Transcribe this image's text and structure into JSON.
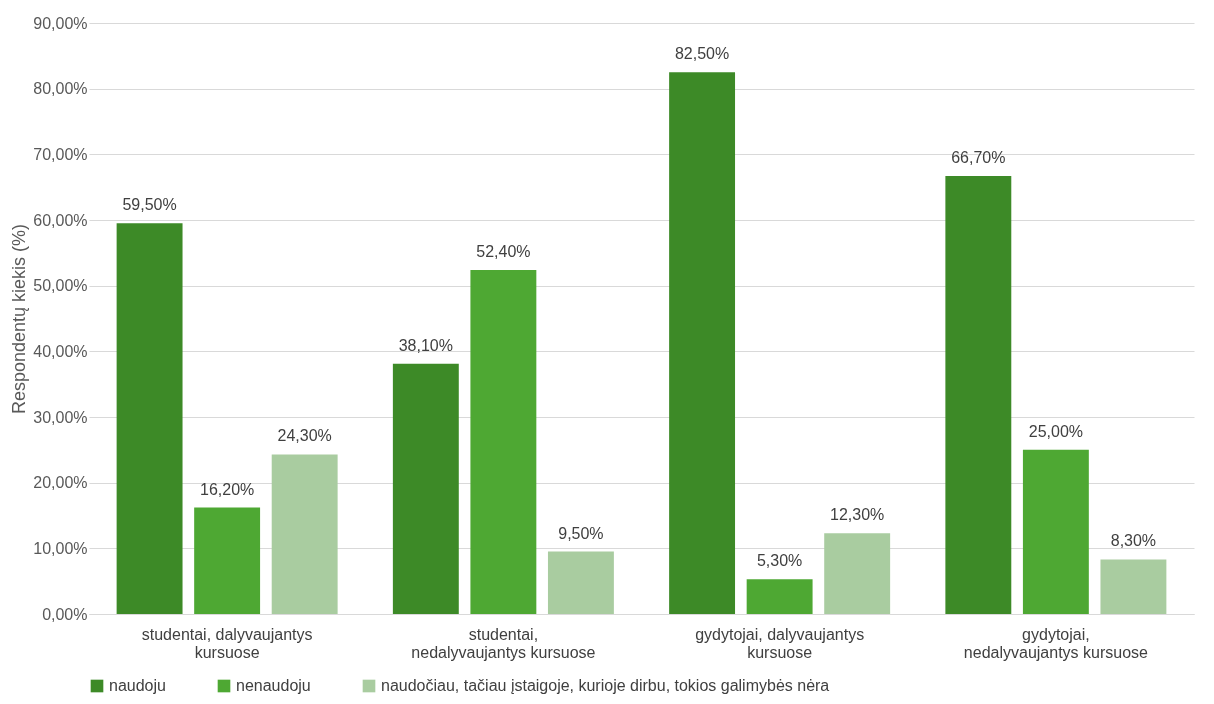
{
  "chart_data": {
    "type": "bar",
    "ylabel": "Respondentų kiekis (%)",
    "categories": [
      "studentai, dalyvaujantys kursuose",
      "studentai, nedalyvaujantys kursuose",
      "gydytojai, dalyvaujantys kursuose",
      "gydytojai, nedalyvaujantys kursuose"
    ],
    "series": [
      {
        "name": "naudoju",
        "color": "#3d8a27",
        "values": [
          59.5,
          38.1,
          82.5,
          66.7
        ],
        "value_labels": [
          "59,50%",
          "38,10%",
          "82,50%",
          "66,70%"
        ]
      },
      {
        "name": "nenaudoju",
        "color": "#4ea833",
        "values": [
          16.2,
          52.4,
          5.3,
          25.0
        ],
        "value_labels": [
          "16,20%",
          "52,40%",
          "5,30%",
          "25,00%"
        ]
      },
      {
        "name": "naudočiau, tačiau įstaigoje, kurioje dirbu, tokios galimybės nėra",
        "color": "#a9cca0",
        "values": [
          24.3,
          9.5,
          12.3,
          8.3
        ],
        "value_labels": [
          "24,30%",
          "9,50%",
          "12,30%",
          "8,30%"
        ]
      }
    ],
    "ylim": [
      0,
      90
    ],
    "yticks": [
      {
        "value": 0,
        "label": "0,00%"
      },
      {
        "value": 10,
        "label": "10,00%"
      },
      {
        "value": 20,
        "label": "20,00%"
      },
      {
        "value": 30,
        "label": "30,00%"
      },
      {
        "value": 40,
        "label": "40,00%"
      },
      {
        "value": 50,
        "label": "50,00%"
      },
      {
        "value": 60,
        "label": "60,00%"
      },
      {
        "value": 70,
        "label": "70,00%"
      },
      {
        "value": 80,
        "label": "80,00%"
      },
      {
        "value": 90,
        "label": "90,00%"
      }
    ],
    "grid": "y",
    "legend": "bottom"
  }
}
